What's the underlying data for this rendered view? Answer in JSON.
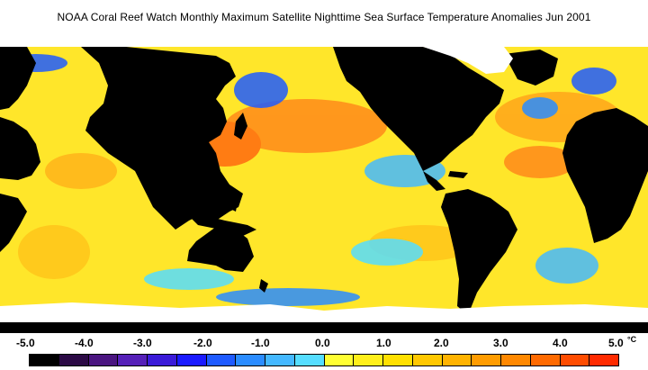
{
  "title": "NOAA Coral Reef Watch Monthly Maximum Satellite Nighttime Sea Surface Temperature Anomalies    Jun 2001",
  "legend": {
    "unit": "°C",
    "ticks": [
      "-5.0",
      "-4.0",
      "-3.0",
      "-2.0",
      "-1.0",
      "0.0",
      "1.0",
      "2.0",
      "3.0",
      "4.0",
      "5.0"
    ],
    "colors": [
      "#000000",
      "#2b0a45",
      "#4a1580",
      "#5520b8",
      "#3a1ad8",
      "#1a1aff",
      "#1e5aff",
      "#2a8cff",
      "#44b8ff",
      "#55ddff",
      "#ffff33",
      "#ffef1a",
      "#ffe000",
      "#ffc800",
      "#ffb300",
      "#ff9c00",
      "#ff8800",
      "#ff6a00",
      "#ff4c00",
      "#ff2a00"
    ]
  },
  "colors": {
    "land": "#000000",
    "ice": "#ffffff",
    "ocean_base": "#ffe62a"
  }
}
